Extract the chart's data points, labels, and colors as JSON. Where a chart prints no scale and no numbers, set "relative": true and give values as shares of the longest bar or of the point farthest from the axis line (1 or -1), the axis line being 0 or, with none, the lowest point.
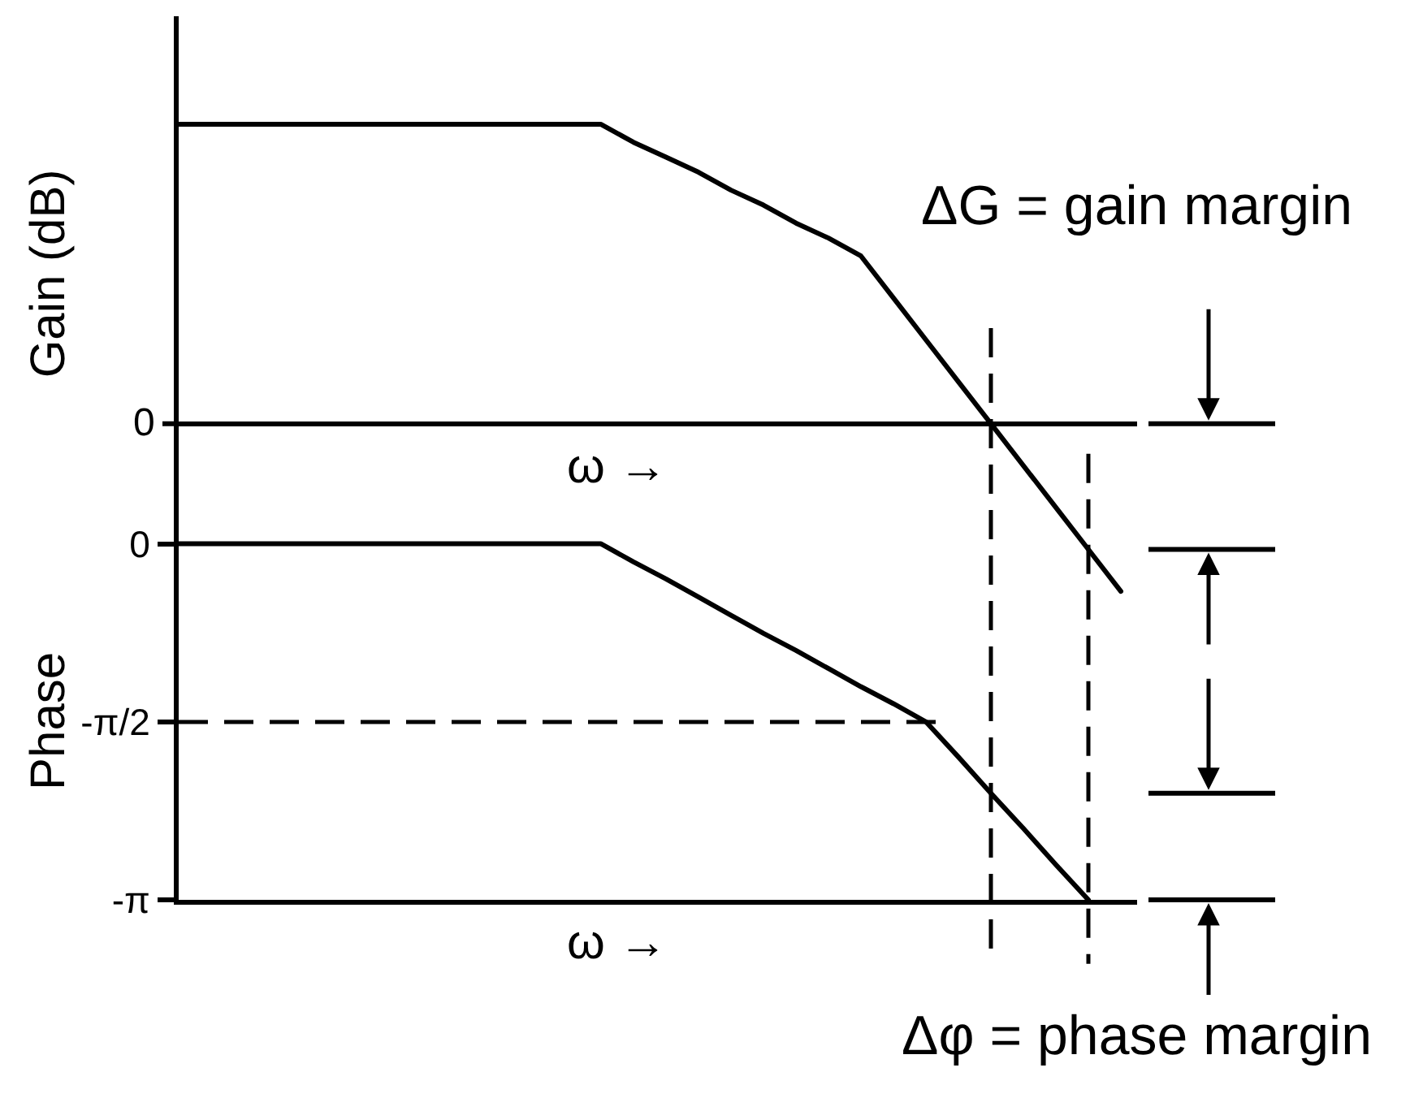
{
  "chart_data": [
    {
      "type": "line",
      "relative": true,
      "tick_labels": false,
      "ylabel": "Gain (dB)",
      "xlabel": "ω →",
      "color": "#000000",
      "categories": [
        null,
        null,
        null,
        null,
        null,
        null,
        null,
        null,
        null,
        null,
        null,
        null,
        null,
        null,
        null,
        null,
        null,
        null,
        null,
        null,
        null,
        null,
        null,
        null,
        null,
        null,
        null,
        null,
        null,
        null
      ],
      "values": [
        1,
        1,
        1,
        1,
        1,
        1,
        1,
        1,
        1,
        1,
        1,
        1,
        1,
        1,
        0.94,
        0.89,
        0.84,
        0.78,
        0.73,
        0.67,
        0.62,
        0.56,
        0.42,
        0.28,
        0.14,
        0,
        -0.14,
        -0.28,
        -0.42,
        -0.56
      ],
      "annotations": [
        "0",
        "ΔG = gain margin"
      ]
    },
    {
      "type": "line",
      "tick_labels": "y",
      "ylabel": "Phase",
      "xlabel": "ω →",
      "color": "#000000",
      "categories": [
        null,
        null,
        null,
        null,
        null,
        null,
        null,
        null,
        null,
        null,
        null,
        null,
        null,
        null,
        null,
        null,
        null,
        null,
        null,
        null,
        null,
        null,
        null,
        null,
        null,
        null,
        null,
        null,
        null,
        null
      ],
      "values": [
        0,
        0,
        0,
        0,
        0,
        0,
        0,
        0,
        0,
        0,
        0,
        0,
        0,
        0,
        -0.16,
        -0.31,
        -0.47,
        -0.63,
        -0.79,
        -0.94,
        -1.1,
        -1.26,
        -1.41,
        -1.57,
        -1.88,
        -2.2,
        -2.51,
        -2.83,
        -3.14,
        null
      ],
      "ylim": [
        -3.1416,
        0.3
      ],
      "yticks": [
        0,
        {
          "value": -1.5708,
          "label": "-π/2"
        },
        {
          "value": -3.1416,
          "label": "-π"
        }
      ],
      "ref_lines": [
        {
          "axis": "y",
          "value": -1.5708,
          "line_style": "dashed",
          "color": "#000000"
        }
      ],
      "annotations": [
        "Δφ = phase margin"
      ]
    }
  ]
}
